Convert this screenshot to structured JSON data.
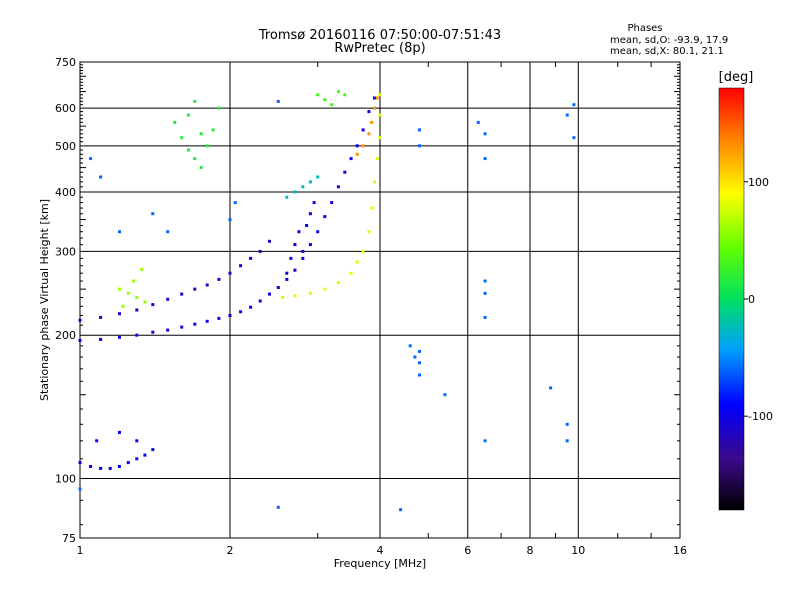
{
  "chart_data": {
    "type": "scatter",
    "title": "Tromsø 20160116 07:50:00-07:51:43",
    "subtitle": "RwPretec (8p)",
    "xlabel": "Frequency [MHz]",
    "ylabel": "Stationary phase Virtual Height [km]",
    "x_scale": "log",
    "y_scale": "log",
    "xlim": [
      1,
      16
    ],
    "ylim": [
      75,
      750
    ],
    "x_ticks": [
      1,
      2,
      4,
      6,
      8,
      10,
      16
    ],
    "x_tick_labels": [
      "1",
      "2",
      "4",
      "6",
      "8",
      "10",
      "16"
    ],
    "y_ticks": [
      75,
      100,
      200,
      300,
      400,
      500,
      600,
      750
    ],
    "y_tick_labels": [
      "75",
      "100",
      "200",
      "300",
      "400",
      "500",
      "600",
      "750"
    ],
    "grid": true,
    "stats": {
      "heading": "Phases",
      "line_o": "mean, sd,O: -93.9, 17.9",
      "line_x": "mean, sd,X: 80.1, 21.1"
    },
    "colorbar": {
      "label": "[deg]",
      "range": [
        -180,
        180
      ],
      "ticks": [
        100,
        0,
        -100
      ],
      "tick_labels": [
        "100",
        "0",
        "-100"
      ],
      "colormap": "rainbow"
    },
    "clusters": [
      {
        "name": "low-E-trace",
        "points": [
          [
            1.0,
            108
          ],
          [
            1.05,
            106
          ],
          [
            1.1,
            105
          ],
          [
            1.15,
            105
          ],
          [
            1.2,
            106
          ],
          [
            1.25,
            108
          ],
          [
            1.3,
            110
          ],
          [
            1.35,
            112
          ],
          [
            1.4,
            115
          ],
          [
            1.08,
            120
          ],
          [
            1.2,
            125
          ],
          [
            1.3,
            120
          ]
        ],
        "phase": -95
      },
      {
        "name": "F-low-trace-1",
        "points": [
          [
            1.0,
            195
          ],
          [
            1.1,
            196
          ],
          [
            1.2,
            198
          ],
          [
            1.3,
            200
          ],
          [
            1.4,
            203
          ],
          [
            1.5,
            205
          ],
          [
            1.6,
            208
          ],
          [
            1.7,
            211
          ],
          [
            1.8,
            214
          ],
          [
            1.9,
            217
          ],
          [
            2.0,
            220
          ],
          [
            2.1,
            224
          ],
          [
            2.2,
            229
          ],
          [
            2.3,
            236
          ],
          [
            2.4,
            244
          ],
          [
            2.5,
            252
          ],
          [
            2.6,
            262
          ],
          [
            2.7,
            274
          ],
          [
            2.8,
            290
          ],
          [
            2.9,
            310
          ],
          [
            3.0,
            330
          ],
          [
            3.1,
            355
          ],
          [
            3.2,
            380
          ],
          [
            3.3,
            410
          ],
          [
            3.4,
            440
          ],
          [
            3.5,
            470
          ],
          [
            3.6,
            500
          ],
          [
            3.7,
            540
          ],
          [
            3.8,
            590
          ],
          [
            3.9,
            630
          ]
        ],
        "phase": -100
      },
      {
        "name": "F-low-trace-2",
        "points": [
          [
            1.0,
            215
          ],
          [
            1.1,
            218
          ],
          [
            1.2,
            222
          ],
          [
            1.3,
            226
          ],
          [
            1.4,
            232
          ],
          [
            1.5,
            238
          ],
          [
            1.6,
            244
          ],
          [
            1.7,
            250
          ],
          [
            1.8,
            255
          ],
          [
            1.9,
            262
          ],
          [
            2.0,
            270
          ],
          [
            2.1,
            280
          ],
          [
            2.2,
            290
          ],
          [
            2.3,
            300
          ],
          [
            2.4,
            315
          ]
        ],
        "phase": -110
      },
      {
        "name": "X-trace",
        "points": [
          [
            2.55,
            240
          ],
          [
            2.7,
            242
          ],
          [
            2.9,
            245
          ],
          [
            3.1,
            250
          ],
          [
            3.3,
            258
          ],
          [
            3.5,
            270
          ],
          [
            3.6,
            285
          ],
          [
            3.7,
            300
          ],
          [
            3.8,
            330
          ],
          [
            3.85,
            370
          ],
          [
            3.9,
            420
          ],
          [
            3.95,
            470
          ],
          [
            4.0,
            520
          ],
          [
            4.0,
            580
          ],
          [
            4.0,
            640
          ]
        ],
        "phase": 80
      },
      {
        "name": "X-upper-trace",
        "points": [
          [
            3.6,
            480
          ],
          [
            3.7,
            500
          ],
          [
            3.8,
            530
          ],
          [
            3.85,
            560
          ],
          [
            3.9,
            600
          ],
          [
            3.95,
            630
          ]
        ],
        "phase": 130
      },
      {
        "name": "spread-F-green",
        "points": [
          [
            1.55,
            560
          ],
          [
            1.6,
            520
          ],
          [
            1.65,
            490
          ],
          [
            1.7,
            470
          ],
          [
            1.75,
            450
          ],
          [
            1.8,
            500
          ],
          [
            1.85,
            540
          ],
          [
            1.9,
            600
          ],
          [
            1.7,
            620
          ],
          [
            1.65,
            580
          ],
          [
            1.75,
            530
          ]
        ],
        "phase": 15
      },
      {
        "name": "spread-F-yellow",
        "points": [
          [
            1.2,
            250
          ],
          [
            1.25,
            245
          ],
          [
            1.3,
            240
          ],
          [
            1.35,
            235
          ],
          [
            1.28,
            260
          ],
          [
            1.33,
            275
          ],
          [
            1.22,
            230
          ]
        ],
        "phase": 60
      },
      {
        "name": "top-green",
        "points": [
          [
            3.0,
            640
          ],
          [
            3.1,
            625
          ],
          [
            3.2,
            610
          ],
          [
            3.3,
            650
          ],
          [
            3.4,
            640
          ]
        ],
        "phase": 30
      },
      {
        "name": "cyan-trace",
        "points": [
          [
            2.6,
            390
          ],
          [
            2.7,
            400
          ],
          [
            2.8,
            410
          ],
          [
            2.9,
            420
          ],
          [
            3.0,
            430
          ]
        ],
        "phase": -25
      },
      {
        "name": "blue-vertical",
        "points": [
          [
            2.6,
            270
          ],
          [
            2.65,
            290
          ],
          [
            2.7,
            310
          ],
          [
            2.75,
            330
          ],
          [
            2.8,
            300
          ],
          [
            2.85,
            340
          ],
          [
            2.9,
            360
          ],
          [
            2.95,
            380
          ]
        ],
        "phase": -100
      },
      {
        "name": "scattered",
        "points": [
          [
            1.05,
            470
          ],
          [
            1.1,
            430
          ],
          [
            1.4,
            360
          ],
          [
            1.5,
            330
          ],
          [
            1.2,
            330
          ],
          [
            2.0,
            350
          ],
          [
            2.05,
            380
          ],
          [
            2.5,
            620
          ],
          [
            4.8,
            540
          ],
          [
            4.8,
            500
          ],
          [
            6.3,
            560
          ],
          [
            6.5,
            530
          ],
          [
            6.5,
            470
          ],
          [
            6.5,
            260
          ],
          [
            6.5,
            245
          ],
          [
            6.5,
            120
          ],
          [
            9.5,
            580
          ],
          [
            9.8,
            610
          ],
          [
            9.8,
            520
          ],
          [
            9.5,
            130
          ],
          [
            9.5,
            120
          ],
          [
            4.6,
            190
          ],
          [
            4.8,
            185
          ],
          [
            4.8,
            175
          ],
          [
            4.8,
            165
          ],
          [
            4.7,
            180
          ],
          [
            4.4,
            86
          ],
          [
            2.5,
            87
          ],
          [
            1.0,
            95
          ],
          [
            5.4,
            150
          ],
          [
            6.5,
            218
          ],
          [
            8.8,
            155
          ]
        ],
        "phase": -60
      }
    ]
  }
}
